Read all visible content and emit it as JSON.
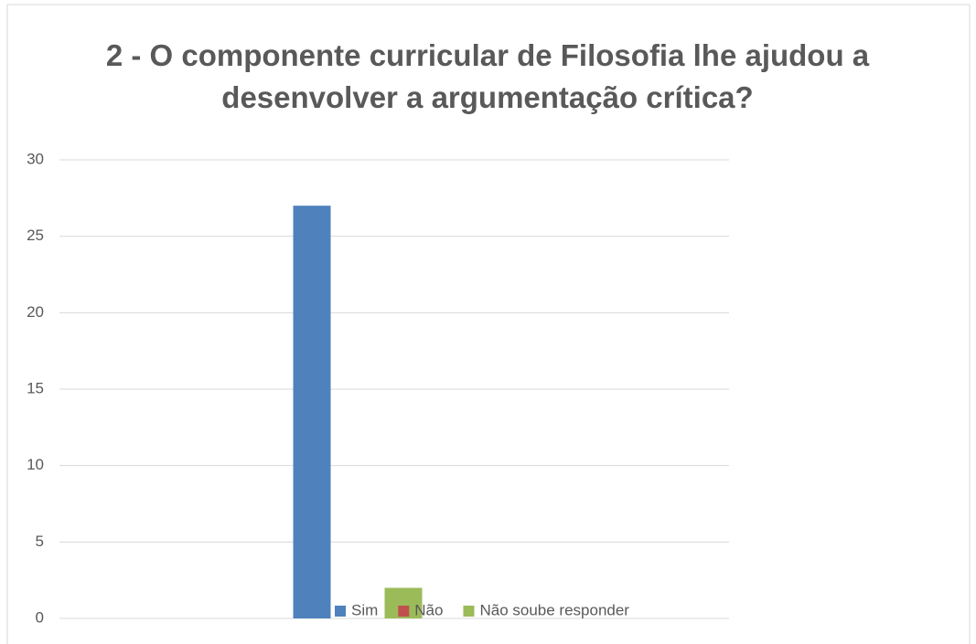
{
  "chart_data": {
    "type": "bar",
    "title": "2 - O componente curricular de Filosofia lhe ajudou a desenvolver a argumentação crítica?",
    "categories": [
      null
    ],
    "series": [
      {
        "name": "Sim",
        "color": "#4f81bd",
        "values": [
          27
        ]
      },
      {
        "name": "Não",
        "color": "#c0504d",
        "values": [
          0
        ]
      },
      {
        "name": "Não soube responder",
        "color": "#9bbb59",
        "values": [
          2
        ]
      }
    ],
    "ylim": [
      0,
      30
    ],
    "yticks": [
      0,
      5,
      10,
      15,
      20,
      25,
      30
    ],
    "grid": true,
    "legend": "bottom"
  }
}
